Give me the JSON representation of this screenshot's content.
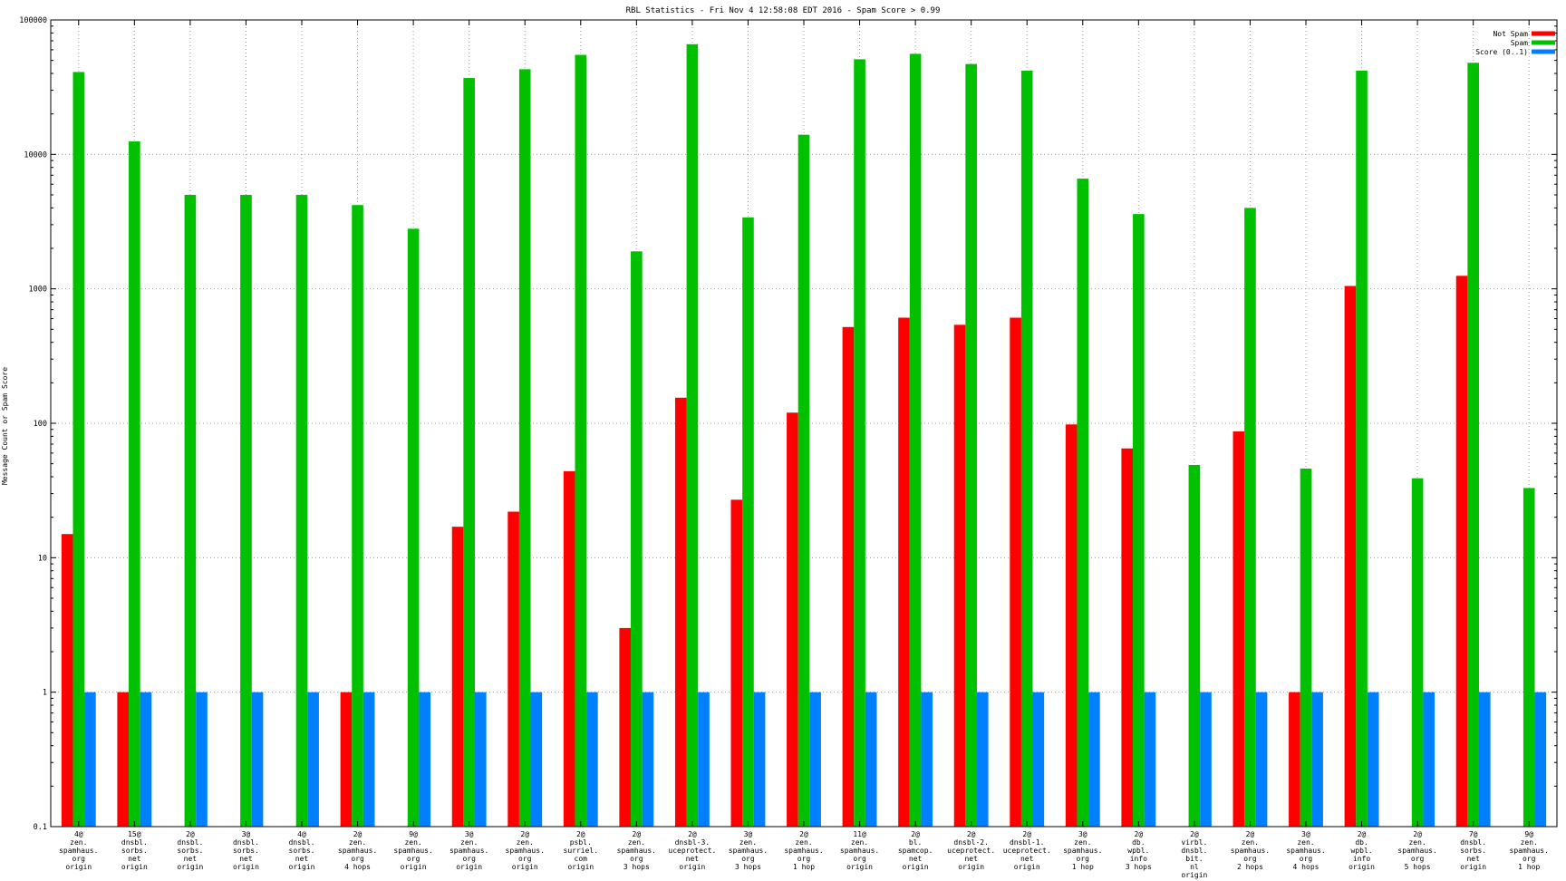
{
  "chart_data": {
    "type": "bar",
    "title": "RBL Statistics - Fri Nov  4 12:58:08 EDT 2016 - Spam Score > 0.99",
    "xlabel": "",
    "ylabel": "Message Count or Spam Score",
    "yscale": "log",
    "ylim": [
      0.1,
      100000
    ],
    "yticks": [
      "0.1",
      "1",
      "10",
      "100",
      "1000",
      "10000",
      "100000"
    ],
    "grid": true,
    "legend_position": "top-right",
    "categories": [
      [
        "4@",
        "zen.",
        "spamhaus.",
        "org",
        "origin"
      ],
      [
        "15@",
        "dnsbl.",
        "sorbs.",
        "net",
        "origin"
      ],
      [
        "2@",
        "dnsbl.",
        "sorbs.",
        "net",
        "origin"
      ],
      [
        "3@",
        "dnsbl.",
        "sorbs.",
        "net",
        "origin"
      ],
      [
        "4@",
        "dnsbl.",
        "sorbs.",
        "net",
        "origin"
      ],
      [
        "2@",
        "zen.",
        "spamhaus.",
        "org",
        "4 hops"
      ],
      [
        "9@",
        "zen.",
        "spamhaus.",
        "org",
        "origin"
      ],
      [
        "3@",
        "zen.",
        "spamhaus.",
        "org",
        "origin"
      ],
      [
        "2@",
        "zen.",
        "spamhaus.",
        "org",
        "origin"
      ],
      [
        "2@",
        "psbl.",
        "surriel.",
        "com",
        "origin"
      ],
      [
        "2@",
        "zen.",
        "spamhaus.",
        "org",
        "3 hops"
      ],
      [
        "2@",
        "dnsbl-3.",
        "uceprotect.",
        "net",
        "origin"
      ],
      [
        "3@",
        "zen.",
        "spamhaus.",
        "org",
        "3 hops"
      ],
      [
        "2@",
        "zen.",
        "spamhaus.",
        "org",
        "1 hop"
      ],
      [
        "11@",
        "zen.",
        "spamhaus.",
        "org",
        "origin"
      ],
      [
        "2@",
        "bl.",
        "spamcop.",
        "net",
        "origin"
      ],
      [
        "2@",
        "dnsbl-2.",
        "uceprotect.",
        "net",
        "origin"
      ],
      [
        "2@",
        "dnsbl-1.",
        "uceprotect.",
        "net",
        "origin"
      ],
      [
        "3@",
        "zen.",
        "spamhaus.",
        "org",
        "1 hop"
      ],
      [
        "2@",
        "db.",
        "wpbl.",
        "info",
        "3 hops"
      ],
      [
        "2@",
        "virbl.",
        "dnsbl.",
        "bit.",
        "nl",
        "origin"
      ],
      [
        "2@",
        "zen.",
        "spamhaus.",
        "org",
        "2 hops"
      ],
      [
        "3@",
        "zen.",
        "spamhaus.",
        "org",
        "4 hops"
      ],
      [
        "2@",
        "db.",
        "wpbl.",
        "info",
        "origin"
      ],
      [
        "2@",
        "zen.",
        "spamhaus.",
        "org",
        "5 hops"
      ],
      [
        "7@",
        "dnsbl.",
        "sorbs.",
        "net",
        "origin"
      ],
      [
        "9@",
        "zen.",
        "spamhaus.",
        "org",
        "1 hop"
      ]
    ],
    "series": [
      {
        "name": "Not Spam",
        "color": "#ff0000",
        "values": [
          15,
          1,
          null,
          null,
          null,
          1,
          null,
          17,
          22,
          44,
          3,
          155,
          27,
          120,
          520,
          610,
          540,
          610,
          98,
          65,
          null,
          87,
          1,
          1050,
          null,
          1250,
          null
        ]
      },
      {
        "name": "Spam",
        "color": "#00c000",
        "values": [
          41000,
          12500,
          5000,
          5000,
          5000,
          4200,
          2800,
          37000,
          43000,
          55000,
          1900,
          66000,
          3400,
          14000,
          51000,
          56000,
          47000,
          42000,
          6600,
          3600,
          49,
          4000,
          46,
          42000,
          39,
          48000,
          33
        ]
      },
      {
        "name": "Score (0..1)",
        "color": "#0080ff",
        "values": [
          1,
          1,
          1,
          1,
          1,
          1,
          1,
          1,
          1,
          1,
          1,
          1,
          1,
          1,
          1,
          1,
          1,
          1,
          1,
          1,
          1,
          1,
          1,
          1,
          1,
          1,
          1
        ]
      }
    ]
  }
}
